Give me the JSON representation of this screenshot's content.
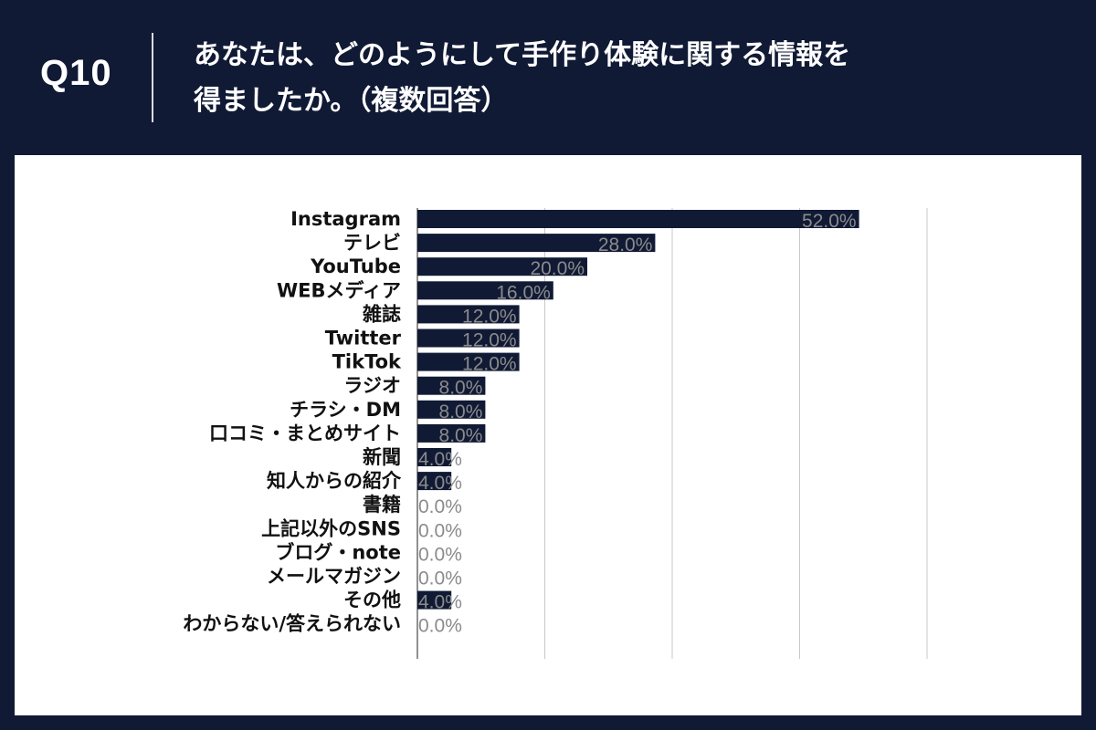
{
  "header": {
    "question_number": "Q10",
    "title_line1": "あなたは、どのようにして手作り体験に関する情報を",
    "title_line2": "得ましたか。（複数回答）"
  },
  "colors": {
    "background": "#111a35",
    "bar": "#111a35",
    "value_label": "#8b8b8b",
    "gridline": "#c8c8c8"
  },
  "chart_data": {
    "type": "bar",
    "orientation": "horizontal",
    "categories": [
      "Instagram",
      "テレビ",
      "YouTube",
      "WEBメディア",
      "雑誌",
      "Twitter",
      "TikTok",
      "ラジオ",
      "チラシ・DM",
      "口コミ・まとめサイト",
      "新聞",
      "知人からの紹介",
      "書籍",
      "上記以外のSNS",
      "ブログ・note",
      "メールマガジン",
      "その他",
      "わからない/答えられない"
    ],
    "values": [
      52.0,
      28.0,
      20.0,
      16.0,
      12.0,
      12.0,
      12.0,
      8.0,
      8.0,
      8.0,
      4.0,
      4.0,
      0.0,
      0.0,
      0.0,
      0.0,
      4.0,
      0.0
    ],
    "value_labels": [
      "52.0%",
      "28.0%",
      "20.0%",
      "16.0%",
      "12.0%",
      "12.0%",
      "12.0%",
      "8.0%",
      "8.0%",
      "8.0%",
      "4.0%",
      "4.0%",
      "0.0%",
      "0.0%",
      "0.0%",
      "0.0%",
      "4.0%",
      "0.0%"
    ],
    "xlim": [
      0,
      60
    ],
    "gridlines": [
      15,
      30,
      45,
      60
    ],
    "title": "",
    "xlabel": "",
    "ylabel": ""
  }
}
